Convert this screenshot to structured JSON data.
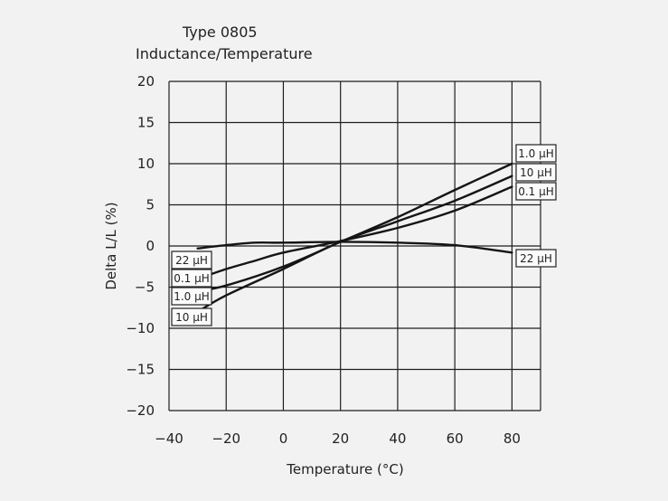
{
  "chart_data": {
    "type": "line",
    "title": "Type 0805",
    "subtitle": "Inductance/Temperature",
    "xlabel": "Temperature (°C)",
    "ylabel": "Delta L/L (%)",
    "xlim": [
      -40,
      90
    ],
    "ylim": [
      -20,
      20
    ],
    "x_ticks": [
      -40,
      -20,
      0,
      20,
      40,
      60,
      80
    ],
    "x_tick_labels": [
      "−40",
      "−20",
      "0",
      "20",
      "40",
      "60",
      "80"
    ],
    "y_ticks": [
      20,
      15,
      10,
      5,
      0,
      -5,
      -10,
      -15,
      -20
    ],
    "y_tick_labels": [
      "20",
      "15",
      "10",
      "5",
      "0",
      "−5",
      "−10",
      "−15",
      "−20"
    ],
    "grid": true,
    "series": [
      {
        "name": "1.0 µH",
        "left_label": "1.0 µH",
        "right_label": "1.0 µH",
        "x": [
          -30,
          -20,
          0,
          20,
          40,
          60,
          80
        ],
        "y": [
          -5.5,
          -4.8,
          -2.5,
          0.5,
          3.5,
          6.8,
          10.0
        ]
      },
      {
        "name": "10 µH",
        "left_label": "10 µH",
        "right_label": "10 µH",
        "x": [
          -30,
          -20,
          0,
          20,
          40,
          60,
          80
        ],
        "y": [
          -8.0,
          -6.0,
          -2.8,
          0.5,
          3.0,
          5.5,
          8.5
        ]
      },
      {
        "name": "0.1 µH",
        "left_label": "0.1 µH",
        "right_label": "0.1 µH",
        "x": [
          -30,
          -20,
          -10,
          0,
          20,
          40,
          60,
          80
        ],
        "y": [
          -4.0,
          -2.8,
          -1.8,
          -0.8,
          0.6,
          2.2,
          4.3,
          7.2
        ]
      },
      {
        "name": "22 µH",
        "left_label": "22 µH",
        "right_label": "22 µH",
        "x": [
          -30,
          -20,
          -10,
          0,
          20,
          40,
          60,
          80
        ],
        "y": [
          -0.3,
          0.1,
          0.4,
          0.4,
          0.5,
          0.4,
          0.1,
          -0.8
        ]
      }
    ]
  }
}
